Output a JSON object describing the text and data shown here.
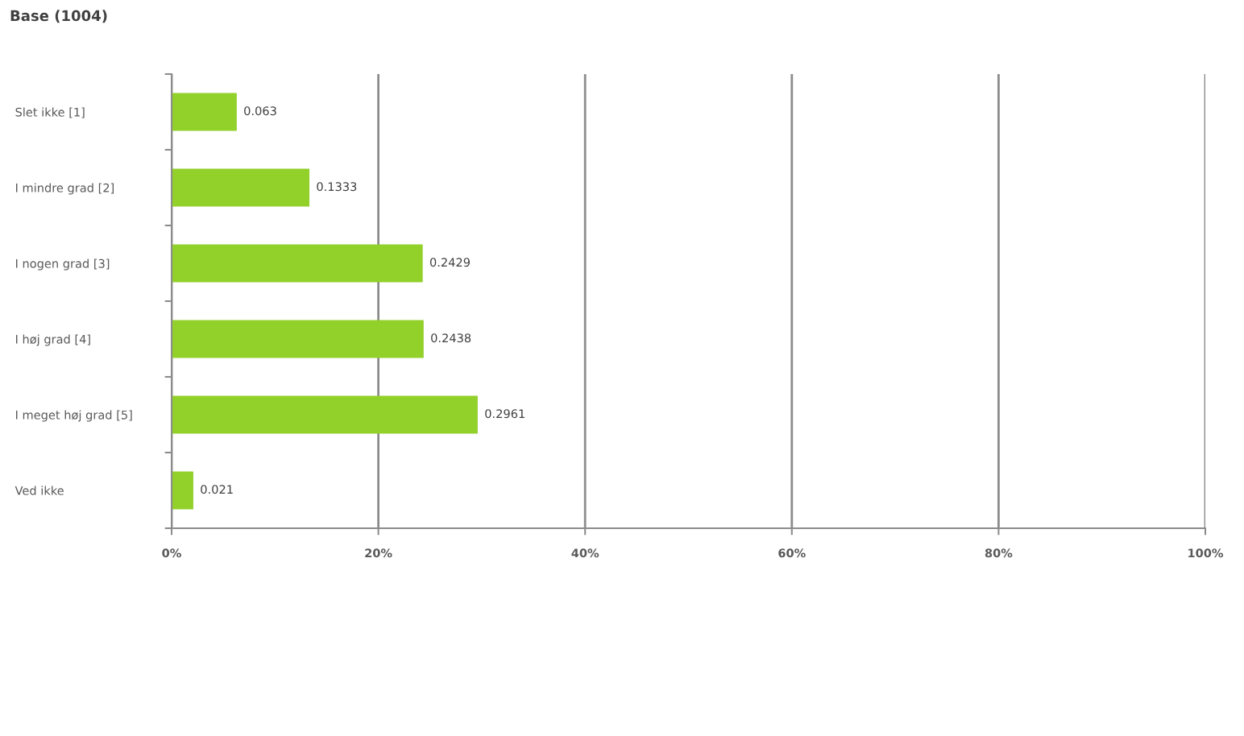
{
  "chart_data": {
    "type": "bar",
    "orientation": "horizontal",
    "title": "Base (1004)",
    "categories": [
      "Slet ikke [1]",
      "I mindre grad [2]",
      "I nogen grad [3]",
      "I høj grad [4]",
      "I meget høj grad [5]",
      "Ved ikke"
    ],
    "values": [
      0.063,
      0.1333,
      0.2429,
      0.2438,
      0.2961,
      0.021
    ],
    "color": "#92d02a",
    "xlim": [
      0,
      1
    ],
    "xticks": [
      {
        "value": 0,
        "label": "0%"
      },
      {
        "value": 0.2,
        "label": "20%"
      },
      {
        "value": 0.4,
        "label": "40%"
      },
      {
        "value": 0.6,
        "label": "60%"
      },
      {
        "value": 0.8,
        "label": "80%"
      },
      {
        "value": 1,
        "label": "100%"
      }
    ],
    "grid": "x",
    "data_labels": true
  }
}
